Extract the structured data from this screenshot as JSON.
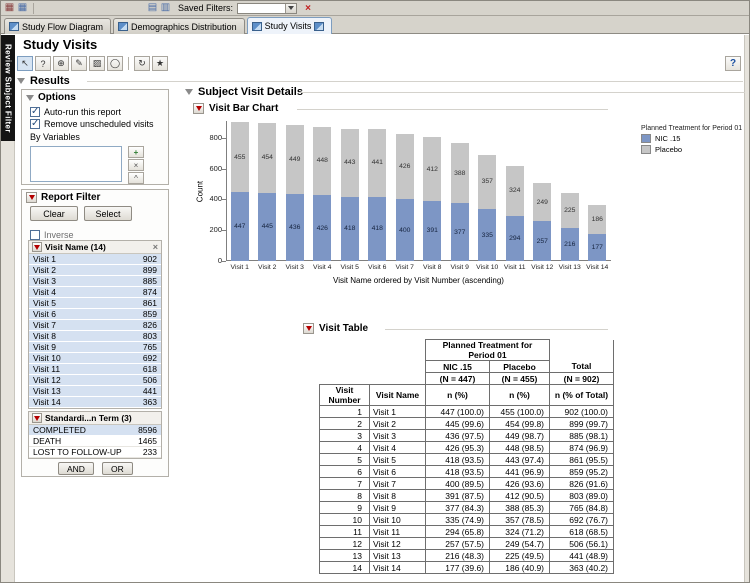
{
  "help_label": "?",
  "top_toolbar": {
    "saved_filters_label": "Saved Filters:",
    "saved_filters_value": "",
    "clear_icon": "×",
    "left_icons": [
      {
        "name": "app-grid-icon",
        "glyph": "▦"
      },
      {
        "name": "data-table-icon",
        "glyph": "▦"
      }
    ],
    "mid_icons": [
      {
        "name": "filter-list-icon",
        "glyph": "▤"
      },
      {
        "name": "filter-table-icon",
        "glyph": "▥"
      }
    ]
  },
  "tab_bar": {
    "tabs": [
      {
        "label": "Study Flow Diagram"
      },
      {
        "label": "Demographics Distribution"
      },
      {
        "label": "Study Visits"
      }
    ]
  },
  "left_strip": {
    "label": "Review Subject Filter"
  },
  "page": {
    "title": "Study Visits",
    "results_label": "Results"
  },
  "tool_row": {
    "groups": [
      [
        {
          "name": "arrow-tool-icon",
          "glyph": "↖"
        },
        {
          "name": "help-tool-icon",
          "glyph": "?"
        },
        {
          "name": "zoom-tool-icon",
          "glyph": "⊕"
        },
        {
          "name": "brush-tool-icon",
          "glyph": "✎"
        },
        {
          "name": "crosshair-tool-icon",
          "glyph": "▨"
        },
        {
          "name": "lasso-tool-icon",
          "glyph": "◯"
        }
      ],
      [
        {
          "name": "refresh-tool-icon",
          "glyph": "↻"
        },
        {
          "name": "star-tool-icon",
          "glyph": "★"
        }
      ]
    ]
  },
  "options_panel": {
    "title": "Options",
    "auto_run_label": "Auto-run this report",
    "remove_unscheduled_label": "Remove unscheduled visits",
    "by_variables_label": "By Variables",
    "list_buttons": [
      {
        "name": "add-by-variable-button",
        "glyph": "+"
      },
      {
        "name": "remove-by-variable-button",
        "glyph": "×"
      },
      {
        "name": "collapse-by-variables-button",
        "glyph": "^"
      }
    ]
  },
  "report_filter": {
    "title": "Report Filter",
    "clear_label": "Clear",
    "select_label": "Select",
    "inverse_label": "Inverse",
    "and_label": "AND",
    "or_label": "OR",
    "visit_list": {
      "title": "Visit Name (14)",
      "close_glyph": "×",
      "items": [
        {
          "name": "Visit 1",
          "count": "902"
        },
        {
          "name": "Visit 2",
          "count": "899"
        },
        {
          "name": "Visit 3",
          "count": "885"
        },
        {
          "name": "Visit 4",
          "count": "874"
        },
        {
          "name": "Visit 5",
          "count": "861"
        },
        {
          "name": "Visit 6",
          "count": "859"
        },
        {
          "name": "Visit 7",
          "count": "826"
        },
        {
          "name": "Visit 8",
          "count": "803"
        },
        {
          "name": "Visit 9",
          "count": "765"
        },
        {
          "name": "Visit 10",
          "count": "692"
        },
        {
          "name": "Visit 11",
          "count": "618"
        },
        {
          "name": "Visit 12",
          "count": "506"
        },
        {
          "name": "Visit 13",
          "count": "441"
        },
        {
          "name": "Visit 14",
          "count": "363"
        }
      ]
    },
    "term_list": {
      "title": "Standardi...n Term (3)",
      "items": [
        {
          "name": "COMPLETED",
          "count": "8596",
          "selected": true
        },
        {
          "name": "DEATH",
          "count": "1465",
          "selected": false
        },
        {
          "name": "LOST TO FOLLOW-UP",
          "count": "233",
          "selected": false
        }
      ]
    }
  },
  "main": {
    "subject_visit_details_title": "Subject Visit Details",
    "bar_chart_title": "Visit Bar Chart",
    "table_title": "Visit Table"
  },
  "chart_data": {
    "type": "bar",
    "stacked": true,
    "title": "Visit Bar Chart",
    "categories": [
      "Visit 1",
      "Visit 2",
      "Visit 3",
      "Visit 4",
      "Visit 5",
      "Visit 6",
      "Visit 7",
      "Visit 8",
      "Visit 9",
      "Visit 10",
      "Visit 11",
      "Visit 12",
      "Visit 13",
      "Visit 14"
    ],
    "series": [
      {
        "name": "NIC .15",
        "color": "#7d96c5",
        "label_color": "#16243f",
        "values": [
          447,
          445,
          436,
          426,
          418,
          418,
          400,
          391,
          377,
          335,
          294,
          257,
          216,
          177
        ]
      },
      {
        "name": "Placebo",
        "color": "#c6c6c6",
        "label_color": "#333333",
        "values": [
          455,
          454,
          449,
          448,
          443,
          441,
          426,
          412,
          388,
          357,
          324,
          249,
          225,
          186
        ]
      }
    ],
    "legend_title": "Planned Treatment for Period 01",
    "legend_position": "right",
    "xlabel": "Visit Name ordered by Visit Number (ascending)",
    "ylabel": "Count",
    "yticks": [
      0,
      200,
      400,
      600,
      800
    ],
    "ylim": [
      0,
      910
    ],
    "grid": false
  },
  "visit_table": {
    "span_header": "Planned Treatment for Period 01",
    "group_headers": [
      "NIC .15",
      "Placebo",
      "Total"
    ],
    "n_headers": [
      "(N = 447)",
      "(N = 455)",
      "(N = 902)"
    ],
    "column_headers": [
      "Visit Number",
      "Visit Name",
      "n (%)",
      "n (%)",
      "n (% of Total)"
    ],
    "rows": [
      [
        "1",
        "Visit 1",
        "447 (100.0)",
        "455 (100.0)",
        "902 (100.0)"
      ],
      [
        "2",
        "Visit 2",
        "445 (99.6)",
        "454 (99.8)",
        "899 (99.7)"
      ],
      [
        "3",
        "Visit 3",
        "436 (97.5)",
        "449 (98.7)",
        "885 (98.1)"
      ],
      [
        "4",
        "Visit 4",
        "426 (95.3)",
        "448 (98.5)",
        "874 (96.9)"
      ],
      [
        "5",
        "Visit 5",
        "418 (93.5)",
        "443 (97.4)",
        "861 (95.5)"
      ],
      [
        "6",
        "Visit 6",
        "418 (93.5)",
        "441 (96.9)",
        "859 (95.2)"
      ],
      [
        "7",
        "Visit 7",
        "400 (89.5)",
        "426 (93.6)",
        "826 (91.6)"
      ],
      [
        "8",
        "Visit 8",
        "391 (87.5)",
        "412 (90.5)",
        "803 (89.0)"
      ],
      [
        "9",
        "Visit 9",
        "377 (84.3)",
        "388 (85.3)",
        "765 (84.8)"
      ],
      [
        "10",
        "Visit 10",
        "335 (74.9)",
        "357 (78.5)",
        "692 (76.7)"
      ],
      [
        "11",
        "Visit 11",
        "294 (65.8)",
        "324 (71.2)",
        "618 (68.5)"
      ],
      [
        "12",
        "Visit 12",
        "257 (57.5)",
        "249 (54.7)",
        "506 (56.1)"
      ],
      [
        "13",
        "Visit 13",
        "216 (48.3)",
        "225 (49.5)",
        "441 (48.9)"
      ],
      [
        "14",
        "Visit 14",
        "177 (39.6)",
        "186 (40.9)",
        "363 (40.2)"
      ]
    ]
  }
}
